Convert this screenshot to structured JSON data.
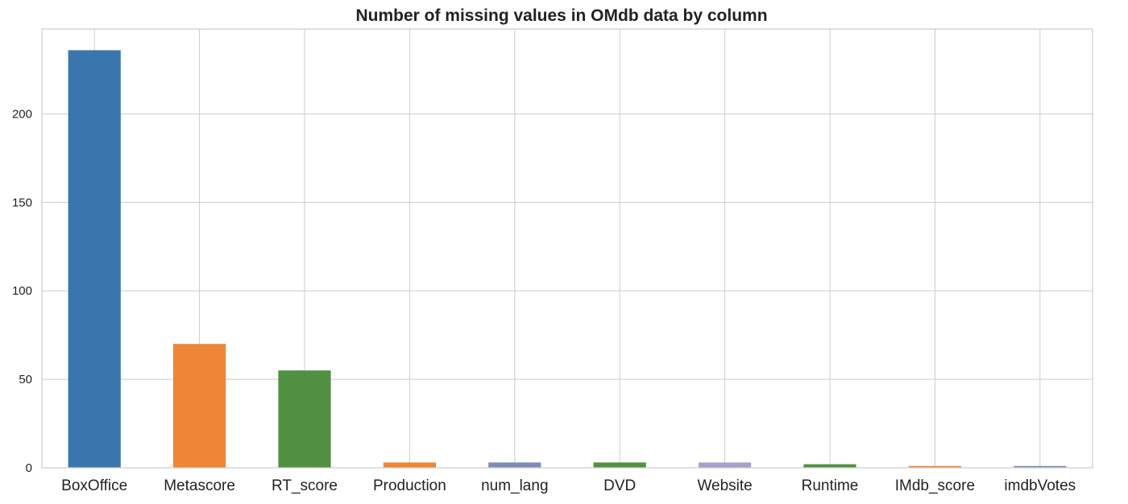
{
  "chart_data": {
    "type": "bar",
    "title": "Number of missing values in OMdb data by column",
    "xlabel": "",
    "ylabel": "",
    "categories": [
      "BoxOffice",
      "Metascore",
      "RT_score",
      "Production",
      "num_lang",
      "DVD",
      "Website",
      "Runtime",
      "IMdb_score",
      "imdbVotes"
    ],
    "values": [
      236,
      70,
      55,
      3,
      3,
      3,
      3,
      2,
      1,
      1
    ],
    "colors": [
      "#3a76ae",
      "#ef8536",
      "#519041",
      "#ef8536",
      "#7f8ab7",
      "#519041",
      "#a9a0c9",
      "#519041",
      "#ef8536",
      "#7f8ab7"
    ],
    "ylim": [
      0,
      248
    ],
    "yticks": [
      0,
      50,
      100,
      150,
      200
    ],
    "grid": true,
    "legend": "none"
  }
}
